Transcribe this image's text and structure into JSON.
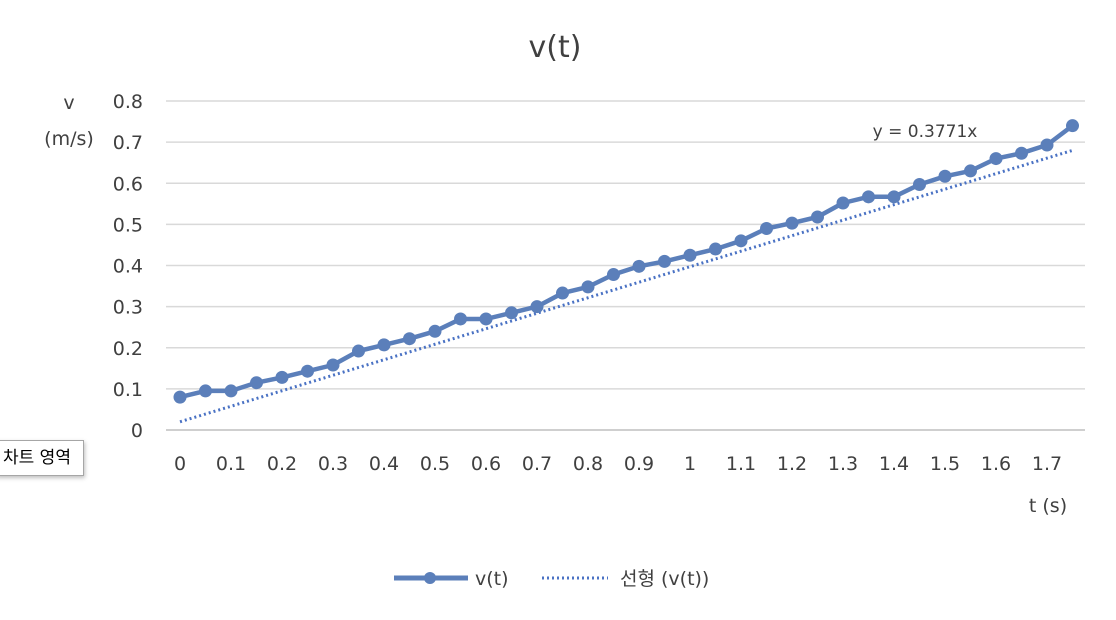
{
  "chart_data": {
    "type": "line",
    "title": "v(t)",
    "ylabel_line1": "v",
    "ylabel_line2": "(m/s)",
    "xlabel": "t (s)",
    "x_tick_labels": [
      "0",
      "0.1",
      "0.2",
      "0.3",
      "0.4",
      "0.5",
      "0.6",
      "0.7",
      "0.8",
      "0.9",
      "1",
      "1.1",
      "1.2",
      "1.3",
      "1.4",
      "1.5",
      "1.6",
      "1.7"
    ],
    "y_tick_labels": [
      "0",
      "0.1",
      "0.2",
      "0.3",
      "0.4",
      "0.5",
      "0.6",
      "0.7",
      "0.8"
    ],
    "ylim": [
      0,
      0.8
    ],
    "grid": true,
    "legend_position": "bottom",
    "series": [
      {
        "name": "v(t)",
        "color": "#5b7fba",
        "marker": "circle",
        "x": [
          0,
          0.05,
          0.1,
          0.15,
          0.2,
          0.25,
          0.3,
          0.35,
          0.4,
          0.45,
          0.5,
          0.55,
          0.6,
          0.65,
          0.7,
          0.75,
          0.8,
          0.85,
          0.9,
          0.95,
          1,
          1.05,
          1.1,
          1.15,
          1.2,
          1.25,
          1.3,
          1.35,
          1.4,
          1.45,
          1.5,
          1.55,
          1.6,
          1.65,
          1.7,
          1.75
        ],
        "values": [
          0.08,
          0.095,
          0.095,
          0.115,
          0.128,
          0.143,
          0.158,
          0.192,
          0.207,
          0.222,
          0.24,
          0.27,
          0.27,
          0.285,
          0.3,
          0.333,
          0.348,
          0.378,
          0.398,
          0.41,
          0.425,
          0.44,
          0.46,
          0.49,
          0.503,
          0.518,
          0.552,
          0.567,
          0.567,
          0.597,
          0.617,
          0.63,
          0.66,
          0.673,
          0.693,
          0.74
        ]
      }
    ],
    "trendline": {
      "name": "선형 (v(t))",
      "slope": 0.3771,
      "intercept": 0.02,
      "color": "#4a72c4",
      "equation_label": "y = 0.3771x"
    }
  },
  "overlay": {
    "tooltip_text": "차트 영역"
  }
}
